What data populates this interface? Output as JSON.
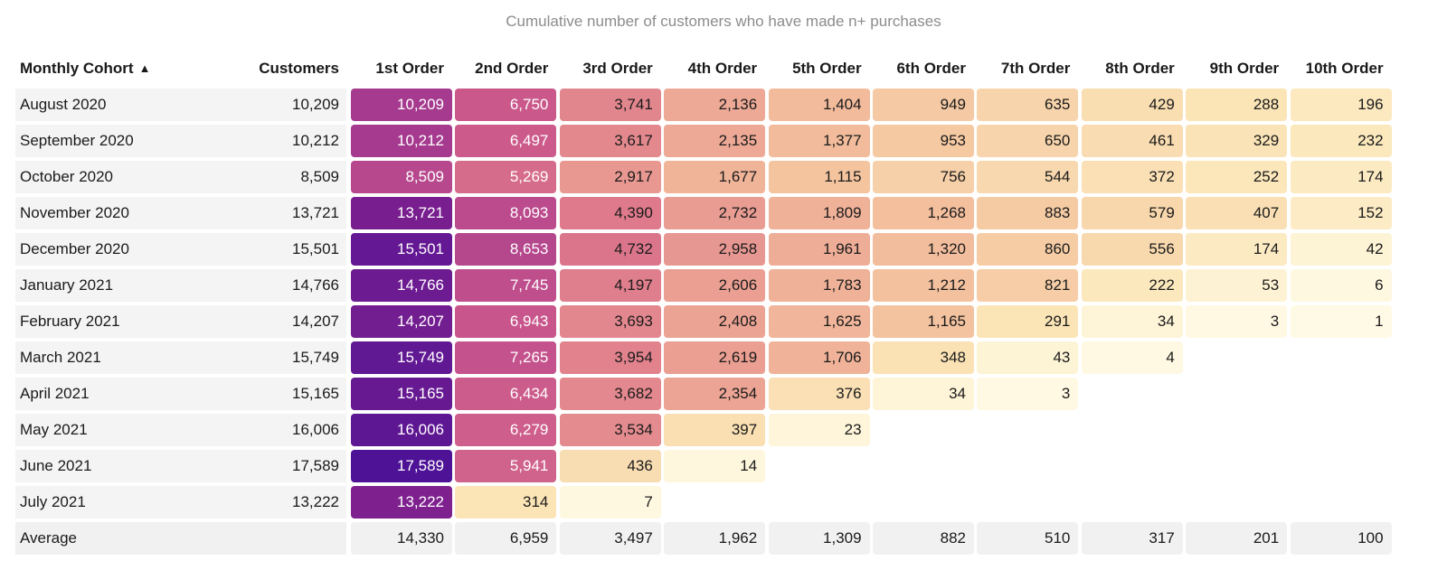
{
  "chart_data": {
    "type": "table",
    "title": "Cumulative number of customers who have made n+ purchases",
    "row_header": "Monthly Cohort",
    "sort_icon": "triangle-up-icon",
    "customers_header": "Customers",
    "columns": [
      "1st Order",
      "2nd Order",
      "3rd Order",
      "4th Order",
      "5th Order",
      "6th Order",
      "7th Order",
      "8th Order",
      "9th Order",
      "10th Order"
    ],
    "rows": [
      {
        "cohort": "August 2020",
        "customers": "10,209",
        "values": [
          10209,
          6750,
          3741,
          2136,
          1404,
          949,
          635,
          429,
          288,
          196
        ]
      },
      {
        "cohort": "September 2020",
        "customers": "10,212",
        "values": [
          10212,
          6497,
          3617,
          2135,
          1377,
          953,
          650,
          461,
          329,
          232
        ]
      },
      {
        "cohort": "October 2020",
        "customers": "8,509",
        "values": [
          8509,
          5269,
          2917,
          1677,
          1115,
          756,
          544,
          372,
          252,
          174
        ]
      },
      {
        "cohort": "November 2020",
        "customers": "13,721",
        "values": [
          13721,
          8093,
          4390,
          2732,
          1809,
          1268,
          883,
          579,
          407,
          152
        ]
      },
      {
        "cohort": "December 2020",
        "customers": "15,501",
        "values": [
          15501,
          8653,
          4732,
          2958,
          1961,
          1320,
          860,
          556,
          174,
          42
        ]
      },
      {
        "cohort": "January 2021",
        "customers": "14,766",
        "values": [
          14766,
          7745,
          4197,
          2606,
          1783,
          1212,
          821,
          222,
          53,
          6
        ]
      },
      {
        "cohort": "February 2021",
        "customers": "14,207",
        "values": [
          14207,
          6943,
          3693,
          2408,
          1625,
          1165,
          291,
          34,
          3,
          1
        ]
      },
      {
        "cohort": "March 2021",
        "customers": "15,749",
        "values": [
          15749,
          7265,
          3954,
          2619,
          1706,
          348,
          43,
          4
        ]
      },
      {
        "cohort": "April 2021",
        "customers": "15,165",
        "values": [
          15165,
          6434,
          3682,
          2354,
          376,
          34,
          3
        ]
      },
      {
        "cohort": "May 2021",
        "customers": "16,006",
        "values": [
          16006,
          6279,
          3534,
          397,
          23
        ]
      },
      {
        "cohort": "June 2021",
        "customers": "17,589",
        "values": [
          17589,
          5941,
          436,
          14
        ]
      },
      {
        "cohort": "July 2021",
        "customers": "13,222",
        "values": [
          13222,
          314,
          7
        ]
      }
    ],
    "average": {
      "label": "Average",
      "values": [
        14330,
        6959,
        3497,
        1962,
        1309,
        882,
        510,
        317,
        201,
        100
      ]
    },
    "color_scale": [
      "#fffbe8",
      "#fbe6b8",
      "#f4c49f",
      "#eba293",
      "#de7a8b",
      "#c9568b",
      "#a93d8f",
      "#7b1f8f",
      "#4d1296"
    ],
    "value_max": 17589
  }
}
